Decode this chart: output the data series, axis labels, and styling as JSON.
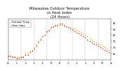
{
  "title": "Milwaukee Outdoor Temperature\nvs Heat Index\n(24 Hours)",
  "title_fontsize": 3.8,
  "bg_color": "#ffffff",
  "plot_bg_color": "#ffffff",
  "grid_color": "#999999",
  "xlim": [
    0,
    24
  ],
  "ylim": [
    60,
    93
  ],
  "yticks": [
    65,
    70,
    75,
    80,
    85,
    90
  ],
  "temp_color": "#ff8800",
  "heat_color": "#dd0000",
  "legend_temp": "Outdoor Temp",
  "legend_heat": "Heat Index",
  "temp_x": [
    0,
    0.5,
    1,
    1.5,
    2,
    2.5,
    3,
    3.5,
    4,
    4.5,
    5,
    5.5,
    6,
    6.5,
    7,
    7.5,
    8,
    8.5,
    9,
    9.5,
    10,
    10.5,
    11,
    11.5,
    12,
    12.5,
    13,
    13.5,
    14,
    14.5,
    15,
    15.5,
    16,
    16.5,
    17,
    17.5,
    18,
    18.5,
    19,
    19.5,
    20,
    20.5,
    21,
    21.5,
    22,
    22.5,
    23,
    23.5
  ],
  "temp_y": [
    64,
    64,
    63,
    63,
    62,
    62,
    63,
    63,
    65,
    65,
    67,
    68,
    70,
    72,
    75,
    77,
    79,
    80,
    82,
    83,
    85,
    86,
    87,
    87,
    88,
    88,
    87,
    87,
    86,
    86,
    85,
    85,
    84,
    83,
    82,
    81,
    80,
    79,
    77,
    76,
    75,
    74,
    73,
    72,
    71,
    70,
    69,
    68
  ],
  "heat_x": [
    0,
    0.5,
    1,
    1.5,
    2,
    2.5,
    3,
    3.5,
    4,
    4.5,
    5,
    5.5,
    6,
    6.5,
    7,
    7.5,
    8,
    8.5,
    9,
    9.5,
    10,
    10.5,
    11,
    11.5,
    12,
    12.5,
    13,
    13.5,
    14,
    14.5,
    15,
    15.5,
    16,
    16.5,
    17,
    17.5,
    18,
    18.5,
    19,
    19.5,
    20,
    20.5,
    21,
    21.5,
    22,
    22.5,
    23,
    23.5
  ],
  "heat_y": [
    63,
    63,
    62,
    62,
    61,
    61,
    62,
    62,
    64,
    64,
    66,
    67,
    69,
    71,
    74,
    76,
    79,
    80,
    83,
    84,
    86,
    87,
    88,
    88,
    89,
    89,
    88,
    87,
    86,
    85,
    84,
    83,
    82,
    81,
    80,
    79,
    78,
    76,
    75,
    74,
    73,
    72,
    71,
    70,
    69,
    68,
    67,
    66
  ],
  "marker_size": 1.0,
  "vlines": [
    0,
    3,
    6,
    9,
    12,
    15,
    18,
    21,
    24
  ],
  "xtick_step": 2,
  "legend_fontsize": 2.5
}
